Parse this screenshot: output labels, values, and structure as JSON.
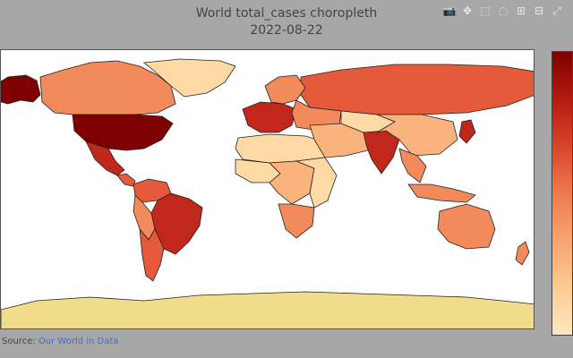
{
  "title": {
    "line1": "World total_cases choropleth",
    "line2": "2022-08-22"
  },
  "source": {
    "prefix": "Source:",
    "link_text": "Our World in Data"
  },
  "modebar": {
    "buttons": [
      {
        "name": "camera-icon",
        "glyph": "📷"
      },
      {
        "name": "pan-icon",
        "glyph": "✥"
      },
      {
        "name": "box-select-icon",
        "glyph": "⬚"
      },
      {
        "name": "lasso-icon",
        "glyph": "◌"
      },
      {
        "name": "zoom-in-icon",
        "glyph": "⊞"
      },
      {
        "name": "zoom-out-icon",
        "glyph": "⊟"
      },
      {
        "name": "reset-view-icon",
        "glyph": "⤢"
      }
    ]
  },
  "colors": {
    "dark": "#7f0000",
    "high": "#c1271a",
    "mid": "#e55a3a",
    "midlow": "#f38a5c",
    "low": "#fbb37d",
    "verylow": "#fdd9a6",
    "minimal": "#f1dc8c"
  },
  "regions": [
    {
      "name": "region-alaska",
      "level": "dark"
    },
    {
      "name": "region-canada",
      "level": "midlow"
    },
    {
      "name": "region-greenland",
      "level": "verylow"
    },
    {
      "name": "region-usa",
      "level": "dark"
    },
    {
      "name": "region-mexico",
      "level": "high"
    },
    {
      "name": "region-central-america",
      "level": "mid"
    },
    {
      "name": "region-colombia-venezuela",
      "level": "mid"
    },
    {
      "name": "region-brazil",
      "level": "high"
    },
    {
      "name": "region-peru-bolivia",
      "level": "midlow"
    },
    {
      "name": "region-argentina-chile",
      "level": "mid"
    },
    {
      "name": "region-russia",
      "level": "mid"
    },
    {
      "name": "region-scandinavia",
      "level": "midlow"
    },
    {
      "name": "region-western-europe",
      "level": "high"
    },
    {
      "name": "region-eastern-europe",
      "level": "midlow"
    },
    {
      "name": "region-north-africa",
      "level": "verylow"
    },
    {
      "name": "region-west-africa",
      "level": "verylow"
    },
    {
      "name": "region-central-africa",
      "level": "low"
    },
    {
      "name": "region-east-africa",
      "level": "verylow"
    },
    {
      "name": "region-southern-africa",
      "level": "midlow"
    },
    {
      "name": "region-middle-east",
      "level": "low"
    },
    {
      "name": "region-central-asia",
      "level": "verylow"
    },
    {
      "name": "region-india",
      "level": "high"
    },
    {
      "name": "region-china",
      "level": "low"
    },
    {
      "name": "region-japan",
      "level": "high"
    },
    {
      "name": "region-southeast-asia",
      "level": "midlow"
    },
    {
      "name": "region-indonesia",
      "level": "midlow"
    },
    {
      "name": "region-australia",
      "level": "midlow"
    },
    {
      "name": "region-new-zealand",
      "level": "midlow"
    },
    {
      "name": "region-antarctica",
      "level": "minimal"
    }
  ]
}
